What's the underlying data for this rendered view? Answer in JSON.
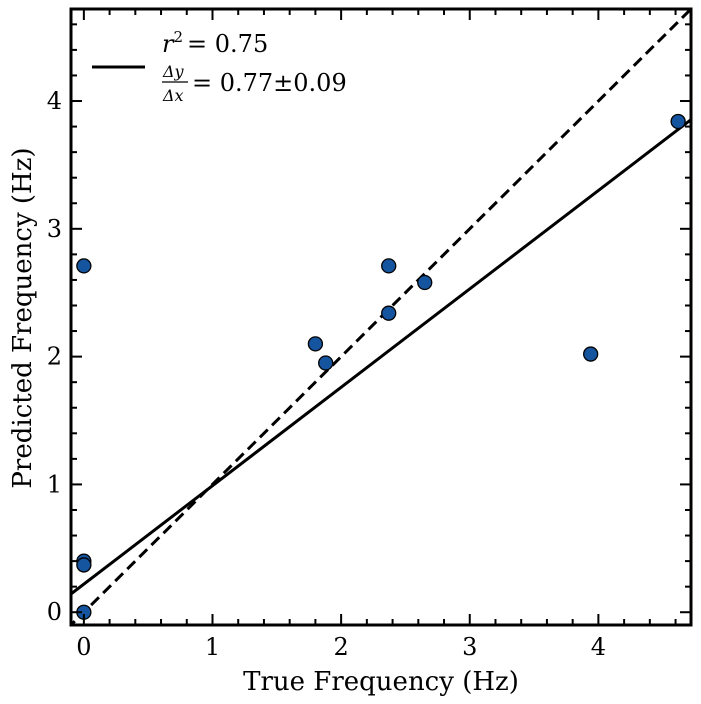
{
  "chart_data": {
    "type": "scatter",
    "xlabel": "True Frequency (Hz)",
    "ylabel": "Predicted Frequency (Hz)",
    "xlim": [
      -0.1,
      4.72
    ],
    "ylim": [
      -0.1,
      4.72
    ],
    "x_ticks": [
      0,
      1,
      2,
      3,
      4
    ],
    "y_ticks": [
      0,
      1,
      2,
      3,
      4
    ],
    "grid": false,
    "legend_position": "top-left",
    "legend": {
      "r2_label": "r",
      "r2_exponent": "2",
      "r2_value": "=  0.75",
      "slope_numerator": "Δy",
      "slope_denominator": "Δx",
      "slope_value": "= 0.77±0.09"
    },
    "points": [
      {
        "x": 0.0,
        "y": 2.71
      },
      {
        "x": 0.0,
        "y": 0.4
      },
      {
        "x": 0.0,
        "y": 0.37
      },
      {
        "x": 0.0,
        "y": 0.0
      },
      {
        "x": 1.8,
        "y": 2.1
      },
      {
        "x": 1.88,
        "y": 1.95
      },
      {
        "x": 2.37,
        "y": 2.71
      },
      {
        "x": 2.37,
        "y": 2.34
      },
      {
        "x": 2.65,
        "y": 2.58
      },
      {
        "x": 3.94,
        "y": 2.02
      },
      {
        "x": 4.62,
        "y": 3.84
      }
    ],
    "fit_line": {
      "slope": 0.77,
      "intercept": 0.22,
      "style": "solid"
    },
    "identity_line": {
      "slope": 1.0,
      "intercept": 0.0,
      "style": "dashed"
    },
    "colors": {
      "marker_fill": "#1555a0",
      "marker_edge": "#000000",
      "lines": "#000000"
    }
  }
}
